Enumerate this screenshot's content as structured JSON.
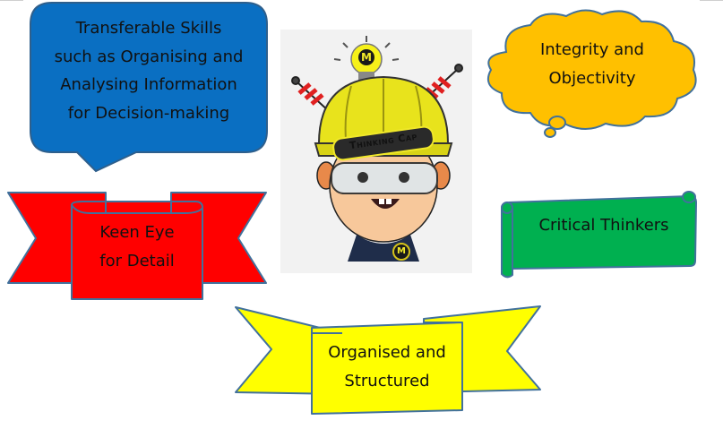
{
  "callouts": {
    "transferable": [
      "Transferable Skills",
      "such as Organising and",
      "Analysing Information",
      "for Decision-making"
    ],
    "integrity": [
      "Integrity and",
      "Objectivity"
    ],
    "keen_eye": [
      "Keen Eye",
      "for Detail"
    ],
    "critical": [
      "Critical Thinkers"
    ],
    "organised": [
      "Organised and",
      "Structured"
    ]
  },
  "mascot": {
    "helmet_label": "Thinking Cap",
    "badge_letter": "M"
  },
  "colors": {
    "blue": "#0a6fc2",
    "orange": "#ffc000",
    "red": "#ff0000",
    "green": "#00b050",
    "yellow": "#ffff00",
    "outline": "#41719c"
  }
}
